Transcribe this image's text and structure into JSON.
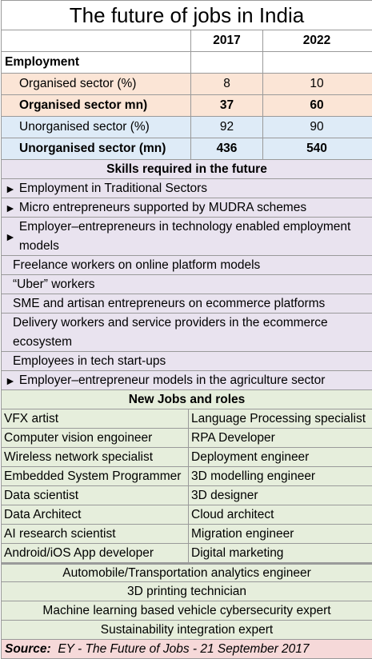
{
  "title": "The future of jobs in India",
  "employment": {
    "header": {
      "label": "Employment",
      "col1": "2017",
      "col2": "2022"
    },
    "rows": [
      {
        "label": "Organised sector (%)",
        "v2017": "8",
        "v2022": "10",
        "bold": false,
        "tone": "peach"
      },
      {
        "label": "Organised sector mn)",
        "v2017": "37",
        "v2022": "60",
        "bold": true,
        "tone": "peach"
      },
      {
        "label": "Unorganised sector (%)",
        "v2017": "92",
        "v2022": "90",
        "bold": false,
        "tone": "blue"
      },
      {
        "label": "Unorganised sector (mn)",
        "v2017": "436",
        "v2022": "540",
        "bold": true,
        "tone": "blue"
      }
    ]
  },
  "skills": {
    "header": "Skills required in the future",
    "items": [
      {
        "text": "Employment in Traditional Sectors",
        "bullet": "►"
      },
      {
        "text": "Micro entrepreneurs supported by MUDRA schemes",
        "bullet": "►"
      },
      {
        "text": "Employer–entrepreneurs in technology enabled employment models",
        "bullet": "►"
      },
      {
        "text": "Freelance workers on online platform models",
        "bullet": ""
      },
      {
        "text": "“Uber” workers",
        "bullet": ""
      },
      {
        "text": "SME and artisan entrepreneurs on ecommerce platforms",
        "bullet": ""
      },
      {
        "text": "Delivery workers and service providers in the ecommerce ecosystem",
        "bullet": ""
      },
      {
        "text": "Employees in tech start-ups",
        "bullet": ""
      },
      {
        "text": "Employer–entrepreneur models in the agriculture sector",
        "bullet": "►"
      }
    ]
  },
  "jobs": {
    "header": "New Jobs and roles",
    "pairs": [
      [
        "VFX artist",
        "Language Processing specialist"
      ],
      [
        "Computer vision engoineer",
        "RPA Developer"
      ],
      [
        "Wireless network specialist",
        "Deployment engineer"
      ],
      [
        "Embedded System Programmer",
        "3D modelling engineer"
      ],
      [
        "Data scientist",
        "3D designer"
      ],
      [
        "Data Architect",
        "Cloud architect"
      ],
      [
        "AI research scientist",
        "Migration engineer"
      ],
      [
        "Android/iOS App developer",
        "Digital marketing"
      ]
    ],
    "singles": [
      "Automobile/Transportation analytics engineer",
      "3D printing technician",
      "Machine learning based vehicle cybersecurity expert",
      "Sustainability integration expert"
    ]
  },
  "source": {
    "label": "Source:",
    "text": "EY - The Future of Jobs - 21 September 2017"
  },
  "colors": {
    "peach": "#fbe5d6",
    "blue": "#deebf7",
    "lavender": "#e9e3ef",
    "green": "#e6eedc",
    "pink": "#f6d9d9"
  }
}
